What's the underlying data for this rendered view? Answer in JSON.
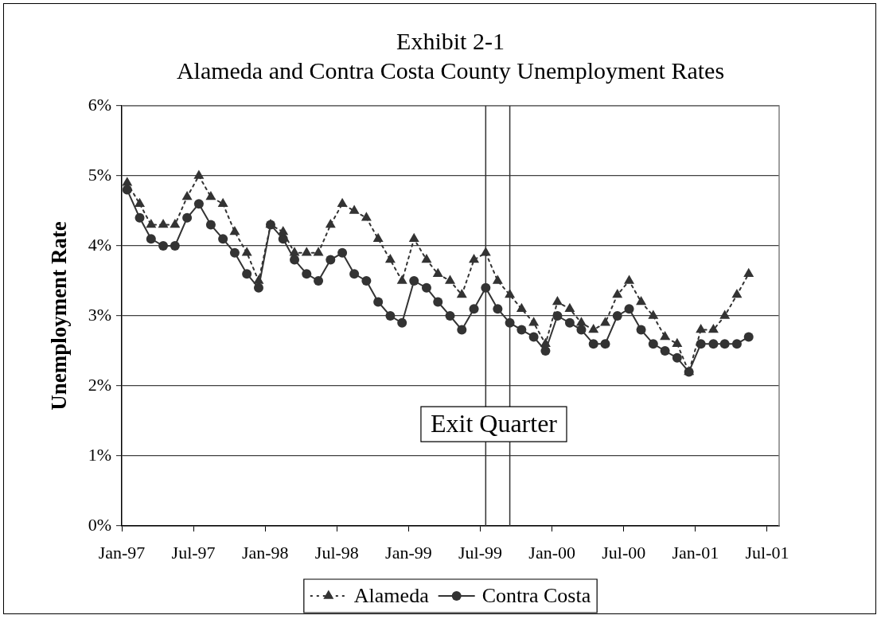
{
  "chart_data": {
    "type": "line",
    "title": "Exhibit 2-1",
    "subtitle": "Alameda and Contra Costa County Unemployment Rates",
    "ylabel": "Unemployment Rate",
    "x": [
      "1997-01-15",
      "1997-02-15",
      "1997-03-15",
      "1997-04-15",
      "1997-05-15",
      "1997-06-15",
      "1997-07-15",
      "1997-08-15",
      "1997-09-15",
      "1997-10-15",
      "1997-11-15",
      "1997-12-15",
      "1998-01-15",
      "1998-02-15",
      "1998-03-15",
      "1998-04-15",
      "1998-05-15",
      "1998-06-15",
      "1998-07-15",
      "1998-08-15",
      "1998-09-15",
      "1998-10-15",
      "1998-11-15",
      "1998-12-15",
      "1999-01-15",
      "1999-02-15",
      "1999-03-15",
      "1999-04-15",
      "1999-05-15",
      "1999-06-15",
      "1999-07-15",
      "1999-08-15",
      "1999-09-15",
      "1999-10-15",
      "1999-11-15",
      "1999-12-15",
      "2000-01-15",
      "2000-02-15",
      "2000-03-15",
      "2000-04-15",
      "2000-05-15",
      "2000-06-15",
      "2000-07-15",
      "2000-08-15",
      "2000-09-15",
      "2000-10-15",
      "2000-11-15",
      "2000-12-15",
      "2001-01-15",
      "2001-02-15",
      "2001-03-15",
      "2001-04-15",
      "2001-05-15"
    ],
    "xlim": [
      "1997-01",
      "2001-08"
    ],
    "xticks": [
      {
        "value": "1997-01",
        "label": "Jan-97"
      },
      {
        "value": "1997-07",
        "label": "Jul-97"
      },
      {
        "value": "1998-01",
        "label": "Jan-98"
      },
      {
        "value": "1998-07",
        "label": "Jul-98"
      },
      {
        "value": "1999-01",
        "label": "Jan-99"
      },
      {
        "value": "1999-07",
        "label": "Jul-99"
      },
      {
        "value": "2000-01",
        "label": "Jan-00"
      },
      {
        "value": "2000-07",
        "label": "Jul-00"
      },
      {
        "value": "2001-01",
        "label": "Jan-01"
      },
      {
        "value": "2001-07",
        "label": "Jul-01"
      }
    ],
    "ylim": [
      0,
      6
    ],
    "yticks": [
      {
        "value": 0,
        "label": "0%"
      },
      {
        "value": 1,
        "label": "1%"
      },
      {
        "value": 2,
        "label": "2%"
      },
      {
        "value": 3,
        "label": "3%"
      },
      {
        "value": 4,
        "label": "4%"
      },
      {
        "value": 5,
        "label": "5%"
      },
      {
        "value": 6,
        "label": "6%"
      }
    ],
    "grid": "y",
    "legend": "bottom",
    "series": [
      {
        "name": "Alameda",
        "color": "#333333",
        "marker": "triangle",
        "line_style": "dotted",
        "values": [
          4.9,
          4.6,
          4.3,
          4.3,
          4.3,
          4.7,
          5.0,
          4.7,
          4.6,
          4.2,
          3.9,
          3.5,
          4.3,
          4.2,
          3.9,
          3.9,
          3.9,
          4.3,
          4.6,
          4.5,
          4.4,
          4.1,
          3.8,
          3.5,
          4.1,
          3.8,
          3.6,
          3.5,
          3.3,
          3.8,
          3.9,
          3.5,
          3.3,
          3.1,
          2.9,
          2.6,
          3.2,
          3.1,
          2.9,
          2.8,
          2.9,
          3.3,
          3.5,
          3.2,
          3.0,
          2.7,
          2.6,
          2.2,
          2.8,
          2.8,
          3.0,
          3.3,
          3.6
        ]
      },
      {
        "name": "Contra Costa",
        "color": "#333333",
        "marker": "circle",
        "line_style": "solid",
        "values": [
          4.8,
          4.4,
          4.1,
          4.0,
          4.0,
          4.4,
          4.6,
          4.3,
          4.1,
          3.9,
          3.6,
          3.4,
          4.3,
          4.1,
          3.8,
          3.6,
          3.5,
          3.8,
          3.9,
          3.6,
          3.5,
          3.2,
          3.0,
          2.9,
          3.5,
          3.4,
          3.2,
          3.0,
          2.8,
          3.1,
          3.4,
          3.1,
          2.9,
          2.8,
          2.7,
          2.5,
          3.0,
          2.9,
          2.8,
          2.6,
          2.6,
          3.0,
          3.1,
          2.8,
          2.6,
          2.5,
          2.4,
          2.2,
          2.6,
          2.6,
          2.6,
          2.6,
          2.7
        ]
      }
    ],
    "ref_lines": [
      {
        "axis": "x",
        "value": "1999-07-15"
      },
      {
        "axis": "x",
        "value": "1999-09-15"
      }
    ],
    "annotations": [
      "Exit Quarter"
    ]
  }
}
